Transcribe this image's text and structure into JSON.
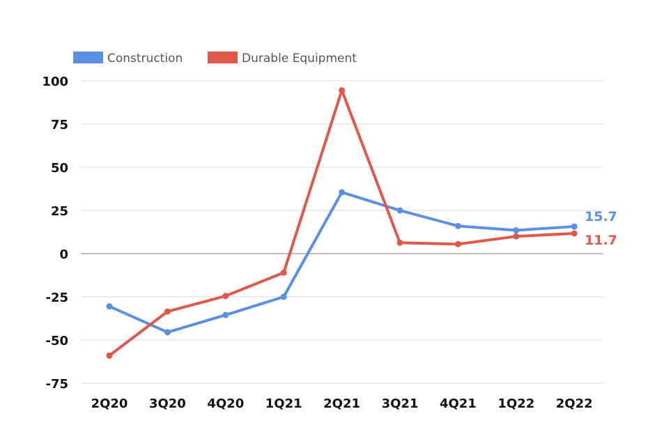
{
  "chart_data": {
    "type": "line",
    "categories": [
      "2Q20",
      "3Q20",
      "4Q20",
      "1Q21",
      "2Q21",
      "3Q21",
      "4Q21",
      "1Q22",
      "2Q22"
    ],
    "series": [
      {
        "name": "Construction",
        "color": "#5b8fe6",
        "values": [
          -30.5,
          -45.5,
          -35.5,
          -25.0,
          35.5,
          25.0,
          16.0,
          13.5,
          15.7
        ]
      },
      {
        "name": "Durable Equipment",
        "color": "#e0584a",
        "values": [
          -59.0,
          -33.5,
          -24.5,
          -11.0,
          94.5,
          6.3,
          5.5,
          10.0,
          11.7
        ]
      }
    ],
    "end_labels": [
      "15.7",
      "11.7"
    ],
    "yticks": [
      "100",
      "75",
      "50",
      "25",
      "0",
      "-25",
      "-50",
      "-75"
    ],
    "ylim": [
      -75,
      100
    ],
    "grid": true,
    "legend_position": "top-left"
  }
}
